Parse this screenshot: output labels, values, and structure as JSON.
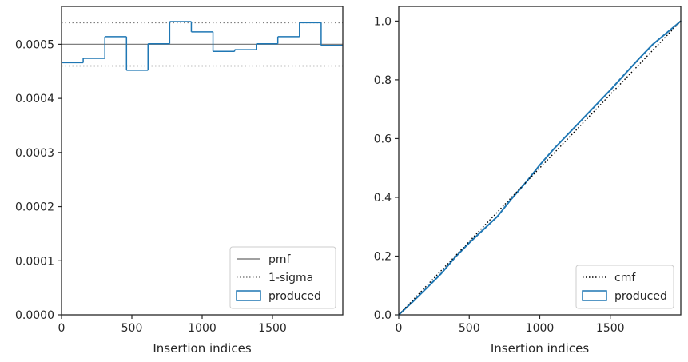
{
  "colors": {
    "produced": "#1f77b4",
    "pmf": "#808080",
    "sigma": "#808080",
    "cmf": "#000000",
    "axes": "#262626",
    "legend_border": "#cccccc"
  },
  "chart_data": [
    {
      "type": "histogram-step",
      "xlabel": "Insertion indices",
      "ylabel": "",
      "xlim": [
        0,
        2000
      ],
      "ylim": [
        0,
        0.00057
      ],
      "xticks": [
        0,
        500,
        1000,
        1500
      ],
      "xtick_labels": [
        "0",
        "500",
        "1000",
        "1500"
      ],
      "yticks": [
        0,
        0.0001,
        0.0002,
        0.0003,
        0.0004,
        0.0005
      ],
      "ytick_labels": [
        "0.0000",
        "0.0001",
        "0.0002",
        "0.0003",
        "0.0004",
        "0.0005"
      ],
      "pmf": 0.0005,
      "sigma_band": [
        0.00046,
        0.00054
      ],
      "bin_edges": [
        0,
        154,
        308,
        462,
        615,
        769,
        923,
        1077,
        1231,
        1385,
        1538,
        1692,
        1846,
        2000
      ],
      "values": [
        0.000466,
        0.000474,
        0.000514,
        0.000452,
        0.000501,
        0.000542,
        0.000523,
        0.000487,
        0.00049,
        0.000501,
        0.000514,
        0.00054,
        0.000498
      ],
      "legend": {
        "position": "lower right",
        "entries": [
          {
            "key": "pmf",
            "label": "pmf",
            "style": "line"
          },
          {
            "key": "sigma",
            "label": "1-sigma",
            "style": "dotted"
          },
          {
            "key": "produced",
            "label": "produced",
            "style": "box"
          }
        ]
      }
    },
    {
      "type": "line",
      "xlabel": "Insertion indices",
      "ylabel": "",
      "xlim": [
        0,
        2000
      ],
      "ylim": [
        0,
        1.05
      ],
      "xticks": [
        0,
        500,
        1000,
        1500
      ],
      "xtick_labels": [
        "0",
        "500",
        "1000",
        "1500"
      ],
      "yticks": [
        0,
        0.2,
        0.4,
        0.6,
        0.8,
        1.0
      ],
      "ytick_labels": [
        "0.0",
        "0.2",
        "0.4",
        "0.6",
        "0.8",
        "1.0"
      ],
      "cmf": {
        "x": [
          0,
          2000
        ],
        "y": [
          0,
          1.0
        ]
      },
      "produced": {
        "x": [
          0,
          100,
          200,
          300,
          400,
          500,
          600,
          700,
          800,
          900,
          1000,
          1100,
          1200,
          1300,
          1400,
          1500,
          1600,
          1700,
          1800,
          1900,
          2000
        ],
        "y": [
          0,
          0.045,
          0.092,
          0.14,
          0.196,
          0.245,
          0.29,
          0.335,
          0.395,
          0.45,
          0.51,
          0.565,
          0.615,
          0.665,
          0.715,
          0.765,
          0.818,
          0.87,
          0.92,
          0.96,
          1.0
        ]
      },
      "legend": {
        "position": "lower right",
        "entries": [
          {
            "key": "cmf",
            "label": "cmf",
            "style": "dotted"
          },
          {
            "key": "produced",
            "label": "produced",
            "style": "box"
          }
        ]
      }
    }
  ]
}
